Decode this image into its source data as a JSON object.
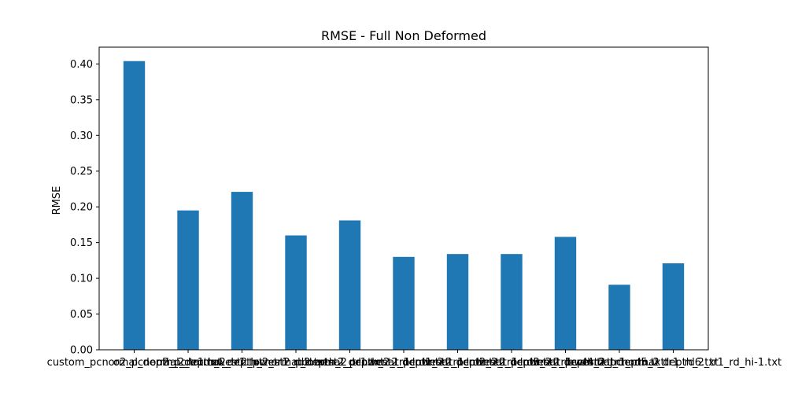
{
  "chart_data": {
    "type": "bar",
    "title": "RMSE - Full Non Deformed",
    "xlabel": "",
    "ylabel": "RMSE",
    "categories": [
      "custom_pcnormal_depth_2_tr1.txt",
      "o2_pcnormal_depth_2_tr1.txt",
      "o2_pcnormal_depth_2_tr1_rd2.txt",
      "lowest2_pcnormal_depth_2_tr1.txt",
      "lowest2_pcnormal_depth_2_tr1_rd1.txt",
      "lowest2_pcnormal_depth_2_tr1_rd2.txt",
      "lowest2_pcnormal_depth_2_tr1_rd3.txt",
      "lowest2_pcnormal_depth_2_tr1_rd4.txt",
      "lowest2_pcnormal_depth_2_tr1_rd5.txt",
      "lowest2_pcnormal_depth_2_tr1_rd6.txt",
      "lowest2_pcnormal_depth_2_tr1_rd_hi-1.txt"
    ],
    "values": [
      0.404,
      0.195,
      0.221,
      0.16,
      0.181,
      0.13,
      0.134,
      0.134,
      0.158,
      0.091,
      0.121
    ],
    "ylim": [
      0,
      0.4235
    ],
    "yticks": [
      "0.00",
      "0.05",
      "0.10",
      "0.15",
      "0.20",
      "0.25",
      "0.30",
      "0.35",
      "0.40"
    ],
    "bar_color": "#1f77b4",
    "grid": false
  }
}
